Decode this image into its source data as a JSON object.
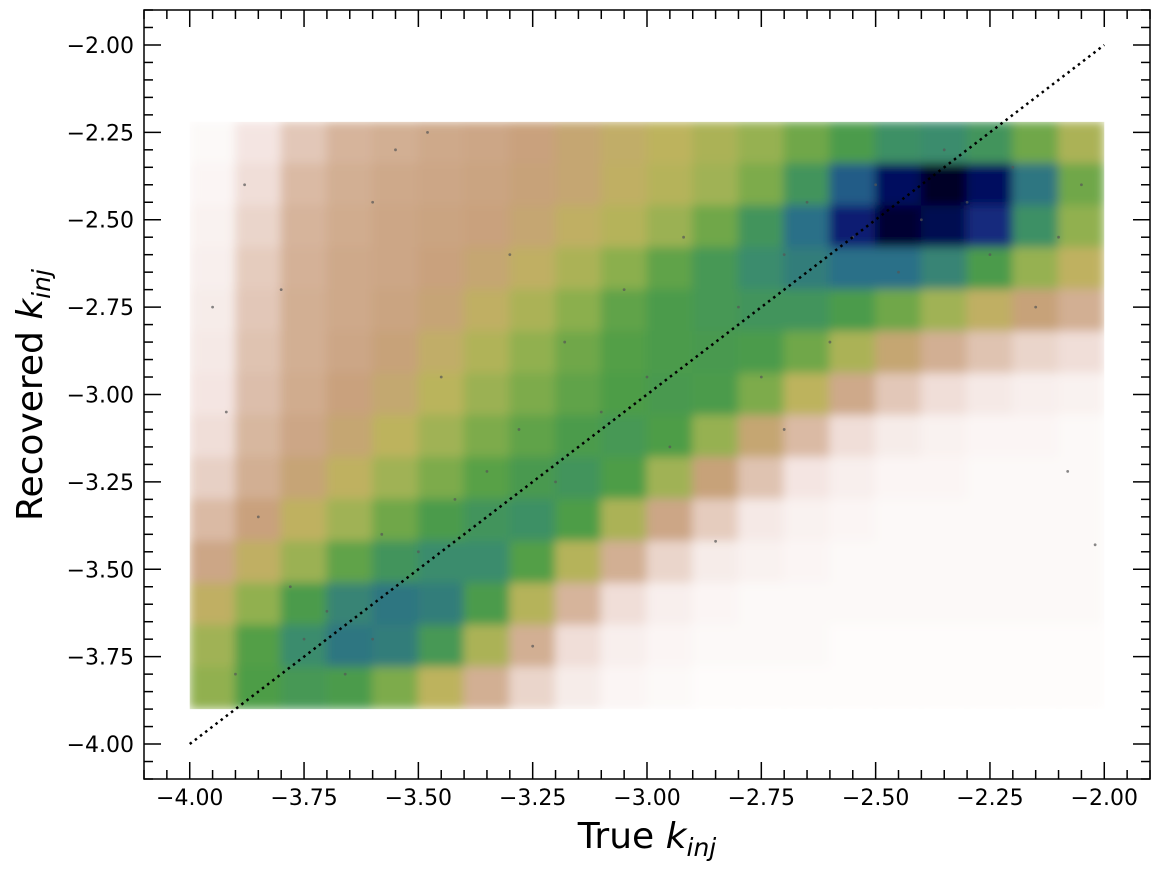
{
  "chart_data": {
    "type": "heatmap",
    "xlabel": {
      "text": "True ",
      "symbol": "k",
      "subscript": "inj"
    },
    "ylabel": {
      "text": "Recovered ",
      "symbol": "k",
      "subscript": "inj"
    },
    "xlim": [
      -4.1,
      -1.9
    ],
    "ylim": [
      -4.1,
      -1.9
    ],
    "xticks": [
      {
        "value": -4,
        "label": "−4.00"
      },
      {
        "value": -3.75,
        "label": "−3.75"
      },
      {
        "value": -3.5,
        "label": "−3.50"
      },
      {
        "value": -3.25,
        "label": "−3.25"
      },
      {
        "value": -3,
        "label": "−3.00"
      },
      {
        "value": -2.75,
        "label": "−2.75"
      },
      {
        "value": -2.5,
        "label": "−2.50"
      },
      {
        "value": -2.25,
        "label": "−2.25"
      },
      {
        "value": -2,
        "label": "−2.00"
      }
    ],
    "yticks": [
      {
        "value": -4,
        "label": "−4.00"
      },
      {
        "value": -3.75,
        "label": "−3.75"
      },
      {
        "value": -3.5,
        "label": "−3.50"
      },
      {
        "value": -3.25,
        "label": "−3.25"
      },
      {
        "value": -3,
        "label": "−3.00"
      },
      {
        "value": -2.75,
        "label": "−2.75"
      },
      {
        "value": -2.5,
        "label": "−2.50"
      },
      {
        "value": -2.25,
        "label": "−2.25"
      },
      {
        "value": -2,
        "label": "−2.00"
      }
    ],
    "xminorticks": [
      -4.1,
      -4.05,
      -3.95,
      -3.9,
      -3.85,
      -3.8,
      -3.7,
      -3.65,
      -3.6,
      -3.55,
      -3.45,
      -3.4,
      -3.35,
      -3.3,
      -3.2,
      -3.15,
      -3.1,
      -3.05,
      -2.95,
      -2.9,
      -2.85,
      -2.8,
      -2.7,
      -2.65,
      -2.6,
      -2.55,
      -2.45,
      -2.4,
      -2.35,
      -2.3,
      -2.2,
      -2.15,
      -2.1,
      -2.05,
      -1.95,
      -1.9
    ],
    "yminorticks": [
      -4.1,
      -4.05,
      -3.95,
      -3.9,
      -3.85,
      -3.8,
      -3.7,
      -3.65,
      -3.6,
      -3.55,
      -3.45,
      -3.4,
      -3.35,
      -3.3,
      -3.2,
      -3.15,
      -3.1,
      -3.05,
      -2.95,
      -2.9,
      -2.85,
      -2.8,
      -2.7,
      -2.65,
      -2.6,
      -2.55,
      -2.45,
      -2.4,
      -2.35,
      -2.3,
      -2.2,
      -2.15,
      -2.1,
      -2.05,
      -1.95,
      -1.9
    ],
    "colorscale": [
      "#ffffff",
      "#f2e2de",
      "#d9b9a3",
      "#c8a07c",
      "#bdb45c",
      "#8fb04f",
      "#4e9e45",
      "#3b8d6c",
      "#2a6c8a",
      "#122a7e",
      "#050a5c",
      "#000000"
    ],
    "extent": {
      "x": [
        -4,
        -2
      ],
      "y": [
        -3.9,
        -2.22
      ]
    },
    "z": [
      [
        0.02,
        0.08,
        0.15,
        0.2,
        0.22,
        0.24,
        0.25,
        0.27,
        0.3,
        0.33,
        0.36,
        0.4,
        0.44,
        0.5,
        0.56,
        0.62,
        0.64,
        0.6,
        0.5,
        0.4
      ],
      [
        0.03,
        0.1,
        0.18,
        0.22,
        0.24,
        0.25,
        0.26,
        0.28,
        0.3,
        0.34,
        0.38,
        0.42,
        0.48,
        0.6,
        0.75,
        0.9,
        0.96,
        0.9,
        0.7,
        0.5
      ],
      [
        0.04,
        0.12,
        0.2,
        0.23,
        0.25,
        0.26,
        0.27,
        0.3,
        0.34,
        0.38,
        0.43,
        0.5,
        0.6,
        0.72,
        0.85,
        0.95,
        0.92,
        0.82,
        0.62,
        0.45
      ],
      [
        0.05,
        0.14,
        0.21,
        0.24,
        0.25,
        0.27,
        0.3,
        0.34,
        0.4,
        0.46,
        0.52,
        0.58,
        0.64,
        0.68,
        0.72,
        0.72,
        0.66,
        0.56,
        0.44,
        0.35
      ],
      [
        0.06,
        0.15,
        0.22,
        0.24,
        0.26,
        0.29,
        0.34,
        0.4,
        0.46,
        0.52,
        0.56,
        0.58,
        0.6,
        0.6,
        0.56,
        0.5,
        0.42,
        0.34,
        0.28,
        0.22
      ],
      [
        0.07,
        0.16,
        0.22,
        0.25,
        0.28,
        0.33,
        0.39,
        0.45,
        0.5,
        0.54,
        0.56,
        0.57,
        0.56,
        0.5,
        0.4,
        0.3,
        0.22,
        0.16,
        0.12,
        0.1
      ],
      [
        0.08,
        0.17,
        0.23,
        0.27,
        0.31,
        0.37,
        0.43,
        0.48,
        0.52,
        0.55,
        0.57,
        0.56,
        0.48,
        0.36,
        0.24,
        0.15,
        0.1,
        0.07,
        0.05,
        0.04
      ],
      [
        0.1,
        0.19,
        0.25,
        0.3,
        0.36,
        0.42,
        0.48,
        0.52,
        0.56,
        0.58,
        0.55,
        0.44,
        0.3,
        0.18,
        0.1,
        0.06,
        0.04,
        0.03,
        0.03,
        0.02
      ],
      [
        0.13,
        0.22,
        0.29,
        0.35,
        0.42,
        0.48,
        0.53,
        0.57,
        0.6,
        0.55,
        0.42,
        0.28,
        0.16,
        0.08,
        0.05,
        0.03,
        0.03,
        0.02,
        0.02,
        0.02
      ],
      [
        0.18,
        0.27,
        0.35,
        0.42,
        0.5,
        0.56,
        0.6,
        0.62,
        0.55,
        0.4,
        0.25,
        0.14,
        0.07,
        0.04,
        0.03,
        0.02,
        0.02,
        0.02,
        0.02,
        0.02
      ],
      [
        0.25,
        0.34,
        0.43,
        0.52,
        0.6,
        0.64,
        0.64,
        0.54,
        0.38,
        0.22,
        0.12,
        0.06,
        0.04,
        0.03,
        0.02,
        0.02,
        0.02,
        0.02,
        0.02,
        0.02
      ],
      [
        0.34,
        0.45,
        0.56,
        0.66,
        0.7,
        0.68,
        0.56,
        0.38,
        0.2,
        0.1,
        0.05,
        0.03,
        0.02,
        0.02,
        0.02,
        0.02,
        0.02,
        0.02,
        0.02,
        0.02
      ],
      [
        0.42,
        0.54,
        0.64,
        0.7,
        0.68,
        0.58,
        0.4,
        0.22,
        0.1,
        0.05,
        0.03,
        0.02,
        0.02,
        0.02,
        0.01,
        0.01,
        0.01,
        0.01,
        0.01,
        0.01
      ],
      [
        0.45,
        0.55,
        0.58,
        0.56,
        0.48,
        0.36,
        0.22,
        0.12,
        0.06,
        0.03,
        0.02,
        0.01,
        0.01,
        0.01,
        0.01,
        0.01,
        0.01,
        0.01,
        0.01,
        0.01
      ]
    ],
    "points": {
      "color": "#555555",
      "x": [
        -3.95,
        -3.92,
        -3.88,
        -3.85,
        -3.8,
        -3.78,
        -3.75,
        -3.7,
        -3.66,
        -3.6,
        -3.58,
        -3.5,
        -3.45,
        -3.42,
        -3.35,
        -3.3,
        -3.28,
        -3.2,
        -3.18,
        -3.1,
        -3.05,
        -3.0,
        -2.95,
        -2.92,
        -2.88,
        -2.85,
        -2.8,
        -2.75,
        -2.7,
        -2.65,
        -2.6,
        -2.55,
        -2.5,
        -2.45,
        -2.4,
        -2.35,
        -2.3,
        -2.25,
        -2.2,
        -2.15,
        -2.1,
        -2.08,
        -2.05,
        -2.02,
        -3.25,
        -3.6,
        -3.9,
        -2.7,
        -3.55,
        -3.48
      ],
      "y": [
        -2.75,
        -3.05,
        -2.4,
        -3.35,
        -2.7,
        -3.55,
        -3.7,
        -3.62,
        -3.8,
        -2.45,
        -3.4,
        -3.45,
        -2.95,
        -3.3,
        -3.22,
        -2.6,
        -3.1,
        -3.25,
        -2.85,
        -3.05,
        -2.7,
        -2.95,
        -3.15,
        -2.55,
        -2.88,
        -3.42,
        -2.75,
        -2.95,
        -2.6,
        -2.45,
        -2.85,
        -2.55,
        -2.4,
        -2.65,
        -2.5,
        -2.3,
        -2.45,
        -2.6,
        -2.35,
        -2.75,
        -2.55,
        -3.22,
        -2.4,
        -3.43,
        -3.72,
        -3.7,
        -3.8,
        -3.1,
        -2.3,
        -2.25
      ]
    },
    "line": {
      "x": [
        -4,
        -2
      ],
      "y": [
        -4,
        -2
      ],
      "color": "#000000"
    }
  }
}
